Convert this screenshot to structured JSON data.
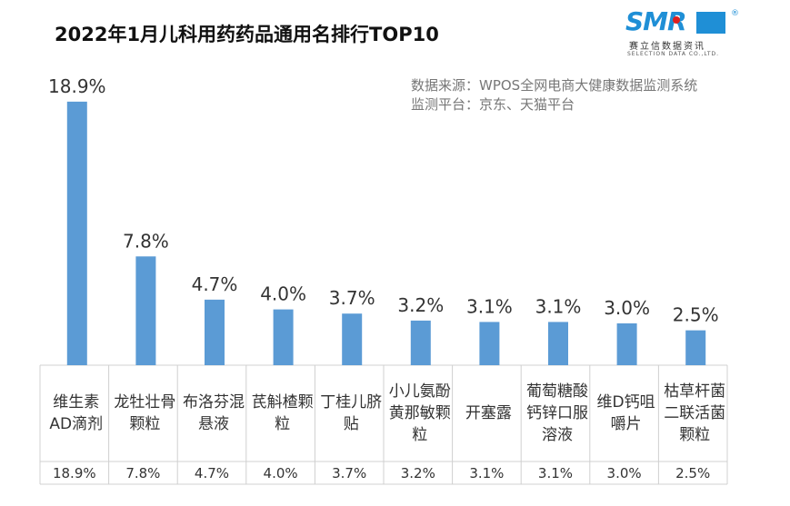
{
  "title": "2022年1月儿科用药药品通用名排行TOP10",
  "source": [
    "数据来源：WPOS全网电商大健康数据监测系统",
    "监测平台：京东、天猫平台"
  ],
  "logo": {
    "mark": "SMR",
    "cn": "赛立信数据资讯",
    "en": "SELECTION DATA CO.,LTD."
  },
  "chart_data": {
    "type": "bar",
    "title": "2022年1月儿科用药药品通用名排行TOP10",
    "categories": [
      "维生素AD滴剂",
      "龙牡壮骨颗粒",
      "布洛芬混悬液",
      "芪斛楂颗粒",
      "丁桂儿脐贴",
      "小儿氨酚黄那敏颗粒",
      "开塞露",
      "葡萄糖酸钙锌口服溶液",
      "维D钙咀嚼片",
      "枯草杆菌二联活菌颗粒"
    ],
    "values": [
      18.9,
      7.8,
      4.7,
      4.0,
      3.7,
      3.2,
      3.1,
      3.1,
      3.0,
      2.5
    ],
    "labels": [
      "18.9%",
      "7.8%",
      "4.7%",
      "4.0%",
      "3.7%",
      "3.2%",
      "3.1%",
      "3.1%",
      "3.0%",
      "2.5%"
    ],
    "bar_color": "#5b9bd5",
    "grid": false,
    "data_table": true
  }
}
